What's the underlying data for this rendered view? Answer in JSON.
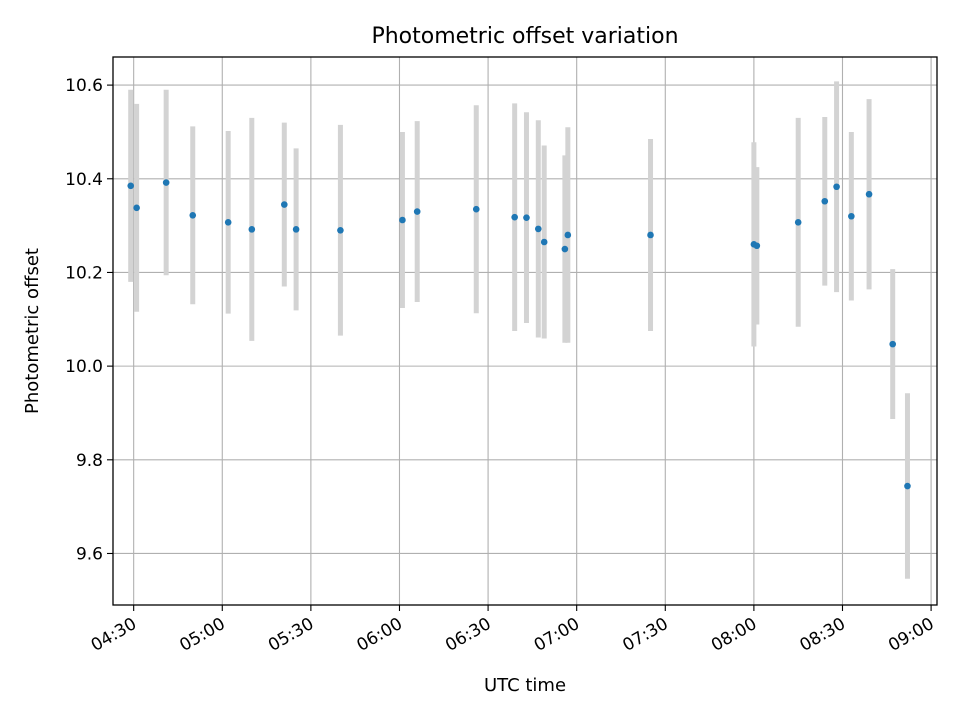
{
  "chart_data": {
    "type": "scatter",
    "title": "Photometric offset variation",
    "xlabel": "UTC time",
    "ylabel": "Photometric offset",
    "xlim": [
      "04:23",
      "09:02"
    ],
    "ylim": [
      9.49,
      10.66
    ],
    "xticks": [
      "04:30",
      "05:00",
      "05:30",
      "06:00",
      "06:30",
      "07:00",
      "07:30",
      "08:00",
      "08:30",
      "09:00"
    ],
    "yticks": [
      9.6,
      9.8,
      10.0,
      10.2,
      10.4,
      10.6
    ],
    "grid": true,
    "colors": {
      "point": "#1f77b4",
      "errorbar": "#d3d3d3",
      "grid": "#b0b0b0"
    },
    "points": [
      {
        "x": "04:29",
        "y": 10.385,
        "yerr": 0.205
      },
      {
        "x": "04:31",
        "y": 10.338,
        "yerr": 0.222
      },
      {
        "x": "04:41",
        "y": 10.392,
        "yerr": 0.198
      },
      {
        "x": "04:50",
        "y": 10.322,
        "yerr": 0.19
      },
      {
        "x": "05:02",
        "y": 10.307,
        "yerr": 0.195
      },
      {
        "x": "05:10",
        "y": 10.292,
        "yerr": 0.238
      },
      {
        "x": "05:21",
        "y": 10.345,
        "yerr": 0.175
      },
      {
        "x": "05:25",
        "y": 10.292,
        "yerr": 0.173
      },
      {
        "x": "05:40",
        "y": 10.29,
        "yerr": 0.225
      },
      {
        "x": "06:01",
        "y": 10.312,
        "yerr": 0.188
      },
      {
        "x": "06:06",
        "y": 10.33,
        "yerr": 0.193
      },
      {
        "x": "06:26",
        "y": 10.335,
        "yerr": 0.222
      },
      {
        "x": "06:39",
        "y": 10.318,
        "yerr": 0.243
      },
      {
        "x": "06:43",
        "y": 10.317,
        "yerr": 0.225
      },
      {
        "x": "06:47",
        "y": 10.293,
        "yerr": 0.232
      },
      {
        "x": "06:49",
        "y": 10.265,
        "yerr": 0.206
      },
      {
        "x": "06:56",
        "y": 10.25,
        "yerr": 0.2
      },
      {
        "x": "06:57",
        "y": 10.28,
        "yerr": 0.23
      },
      {
        "x": "07:25",
        "y": 10.28,
        "yerr": 0.205
      },
      {
        "x": "08:00",
        "y": 10.26,
        "yerr": 0.218
      },
      {
        "x": "08:01",
        "y": 10.257,
        "yerr": 0.168
      },
      {
        "x": "08:15",
        "y": 10.307,
        "yerr": 0.223
      },
      {
        "x": "08:24",
        "y": 10.352,
        "yerr": 0.18
      },
      {
        "x": "08:28",
        "y": 10.383,
        "yerr": 0.225
      },
      {
        "x": "08:33",
        "y": 10.32,
        "yerr": 0.18
      },
      {
        "x": "08:39",
        "y": 10.367,
        "yerr": 0.203
      },
      {
        "x": "08:47",
        "y": 10.047,
        "yerr": 0.16
      },
      {
        "x": "08:52",
        "y": 9.744,
        "yerr": 0.198
      }
    ]
  }
}
